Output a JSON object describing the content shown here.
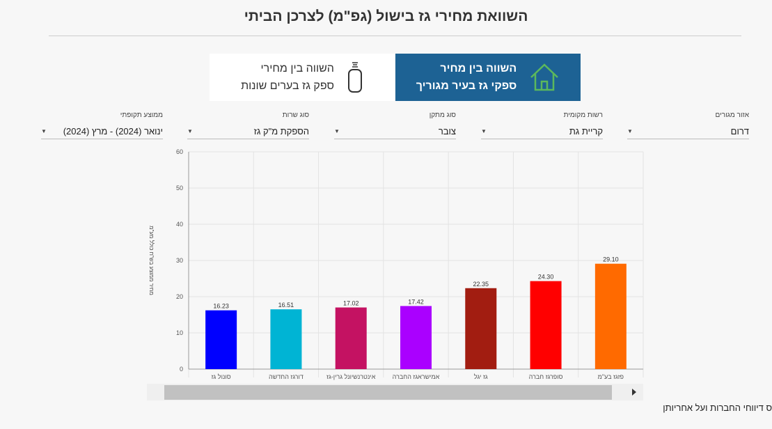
{
  "title": "השוואת מחירי גז בישול (גפ\"מ) לצרכן הביתי",
  "tiles": [
    {
      "line1": "השווה בין מחיר",
      "line2": "ספקי גז בעיר מגוריך",
      "icon": "house-icon",
      "active": true
    },
    {
      "line1": "השווה בין מחירי",
      "line2": "ספק גז בערים שונות",
      "icon": "gas-cylinder-icon",
      "active": false
    }
  ],
  "filters": [
    {
      "label": "אזור מגורים",
      "value": "דרום"
    },
    {
      "label": "רשות מקומית",
      "value": "קריית גת"
    },
    {
      "label": "סוג מתקן",
      "value": "צובר"
    },
    {
      "label": "סוג שרות",
      "value": "הספקת מ\"ק גז"
    },
    {
      "label": "ממוצע תקופתי",
      "value": "ינואר (2024) - מרץ (2024)"
    }
  ],
  "chart_data": {
    "type": "bar",
    "categories": [
      "סונול גז",
      "דורגז החדשה",
      "אינטרנשיונל גרין-גז",
      "אמישראגז החברה",
      "גז יגל",
      "סופרגז חברה",
      "פזגז בע\"מ"
    ],
    "values": [
      16.23,
      16.51,
      17.02,
      17.42,
      22.35,
      24.3,
      29.1
    ],
    "value_labels": [
      "16.23",
      "16.51",
      "17.02",
      "17.42",
      "22.35",
      "24.30",
      "29.10"
    ],
    "colors": [
      "#0000ff",
      "#00b4d4",
      "#c41262",
      "#aa00ff",
      "#a21d11",
      "#ff0000",
      "#ff6a00"
    ],
    "ylabel": "מחיר ממוצע בש\"ח כולל מע\"מ",
    "ylim": [
      0,
      60
    ],
    "yticks": [
      "0",
      "10",
      "20",
      "30",
      "40",
      "50",
      "60"
    ],
    "grid": true
  },
  "footer": "ס דיווחי החברות ועל אחריותן"
}
